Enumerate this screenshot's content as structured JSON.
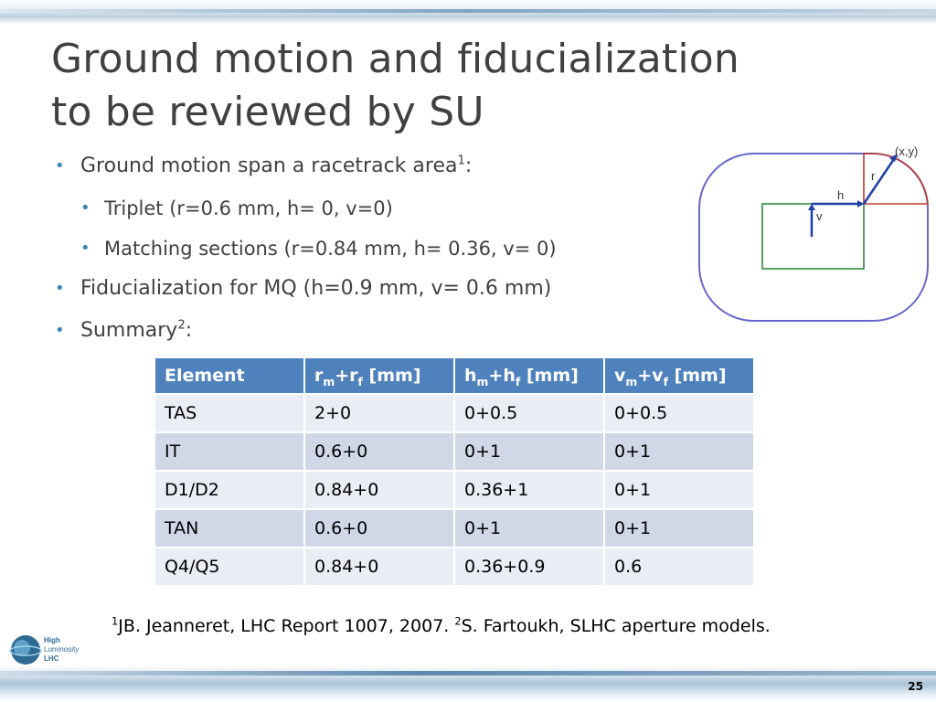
{
  "title_line1": "Ground motion and fiducialization",
  "title_line2": "to be reviewed by SU",
  "bullets": {
    "racetrack": {
      "text": "Ground motion span a racetrack area",
      "ref": "1",
      "suffix": ":"
    },
    "triplet": "Triplet (r=0.6 mm, h= 0, v=0)",
    "matching": "Matching sections (r=0.84 mm, h= 0.36, v= 0)",
    "fiducialization": "Fiducialization for MQ (h=0.9 mm, v= 0.6 mm)",
    "summary": {
      "text": "Summary",
      "ref": "2",
      "suffix": ":"
    }
  },
  "table": {
    "headers": {
      "element": "Element",
      "r": {
        "a": "r",
        "a_sub": "m",
        "plus": "+r",
        "b_sub": "f",
        "unit": " [mm]"
      },
      "h": {
        "a": "h",
        "a_sub": "m",
        "plus": "+h",
        "b_sub": "f",
        "unit": " [mm]"
      },
      "v": {
        "a": "v",
        "a_sub": "m",
        "plus": "+v",
        "b_sub": "f",
        "unit": " [mm]"
      }
    },
    "rows": [
      [
        "TAS",
        "2+0",
        "0+0.5",
        "0+0.5"
      ],
      [
        "IT",
        "0.6+0",
        "0+1",
        "0+1"
      ],
      [
        "D1/D2",
        "0.84+0",
        "0.36+1",
        "0+1"
      ],
      [
        "TAN",
        "0.6+0",
        "0+1",
        "0+1"
      ],
      [
        "Q4/Q5",
        "0.84+0",
        "0.36+0.9",
        "0.6"
      ]
    ]
  },
  "diagram": {
    "point_label": "(x,y)",
    "r_label": "r",
    "h_label": "h",
    "v_label": "v"
  },
  "references": {
    "ref1_num": "1",
    "ref1_text": "JB. Jeanneret, LHC Report 1007, 2007. ",
    "ref2_num": "2",
    "ref2_text": "S. Fartoukh, SLHC aperture models."
  },
  "logo": {
    "line1": "High",
    "line2": "Luminosity",
    "line3": "LHC"
  },
  "page_number": "25",
  "colors": {
    "accent": "#3b86b6",
    "table_header": "#4f81bd",
    "racetrack": "#6666cc",
    "rect": "#2e8b3a",
    "arc": "#c0392b",
    "arrow": "#1f3fa8"
  }
}
